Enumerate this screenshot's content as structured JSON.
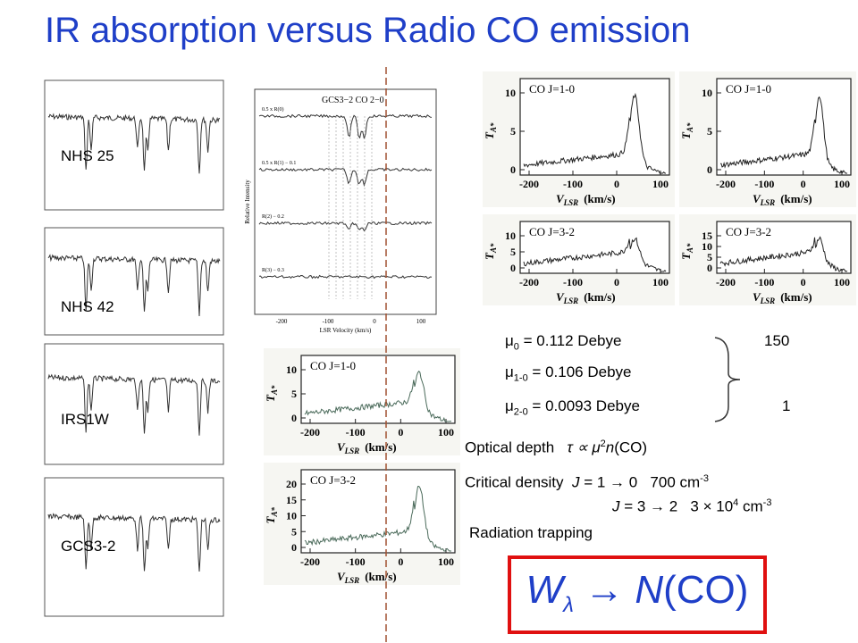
{
  "title": "IR absorption versus Radio CO emission",
  "ir_spectra": {
    "labels": [
      "NHS 25",
      "NHS 42",
      "IRS1W",
      "GCS3-2"
    ]
  },
  "gcs_panel": {
    "title": "GCS3−2   CO 2−0",
    "xticks": [
      "-200",
      "-100",
      "0",
      "100"
    ],
    "xlabel": "LSR Velocity (km/s)",
    "ylabel": "Relative Intensity",
    "rows": [
      "0.5 x R(0)",
      "0.5 x R(1) − 0.1",
      "R(2) − 0.2",
      "R(3) − 0.3"
    ]
  },
  "radio_panels": [
    {
      "title": "CO J=1-0",
      "yticks": [
        "0",
        "5",
        "10"
      ],
      "xticks": [
        "-200",
        "-100",
        "0",
        "100"
      ],
      "xlabel": "V",
      "xlabel_sub": "LSR",
      "xlabel_unit": "(km/s)",
      "ylabel": "T",
      "ylabel_sub": "A*"
    },
    {
      "title": "CO J=1-0",
      "yticks": [
        "0",
        "5",
        "10"
      ],
      "xticks": [
        "-200",
        "-100",
        "0",
        "100"
      ],
      "xlabel": "V",
      "xlabel_sub": "LSR",
      "xlabel_unit": "(km/s)",
      "ylabel": "T",
      "ylabel_sub": "A*"
    },
    {
      "title": "CO J=3-2",
      "yticks": [
        "0",
        "5",
        "10"
      ],
      "xticks": [
        "-200",
        "-100",
        "0",
        "100"
      ],
      "xlabel": "V",
      "xlabel_sub": "LSR",
      "xlabel_unit": "(km/s)",
      "ylabel": "T",
      "ylabel_sub": "A*"
    },
    {
      "title": "CO J=3-2",
      "yticks": [
        "0",
        "5",
        "10",
        "15"
      ],
      "xticks": [
        "-200",
        "-100",
        "0",
        "100"
      ],
      "xlabel": "V",
      "xlabel_sub": "LSR",
      "xlabel_unit": "(km/s)",
      "ylabel": "T",
      "ylabel_sub": "A*"
    },
    {
      "title": "CO J=1-0",
      "yticks": [
        "0",
        "5",
        "10"
      ],
      "xticks": [
        "-200",
        "-100",
        "0",
        "100"
      ],
      "xlabel": "V",
      "xlabel_sub": "LSR",
      "xlabel_unit": "(km/s)",
      "ylabel": "T",
      "ylabel_sub": "A*"
    },
    {
      "title": "CO J=3-2",
      "yticks": [
        "0",
        "5",
        "10",
        "15",
        "20"
      ],
      "xticks": [
        "-200",
        "-100",
        "0",
        "100"
      ],
      "xlabel": "V",
      "xlabel_sub": "LSR",
      "xlabel_unit": "(km/s)",
      "ylabel": "T",
      "ylabel_sub": "A*"
    }
  ],
  "dipoles": [
    {
      "symbol": "μ",
      "sub": "0",
      "rest": " = 0.112 Debye"
    },
    {
      "symbol": "μ",
      "sub": "1-0",
      "rest": " = 0.106 Debye"
    },
    {
      "symbol": "μ",
      "sub": "2-0",
      "rest": " = 0.0093 Debye"
    }
  ],
  "ratio": {
    "top": "150",
    "bottom": "1"
  },
  "optical_depth": {
    "label": "Optical depth",
    "tau": "τ ∝ ",
    "mu": "μ",
    "sup": "2",
    "n": "n",
    "co": "(CO)"
  },
  "critical_density": {
    "label": "Critical density",
    "row1": {
      "j": "J",
      "trans": " = 1 → 0",
      "value": "700 cm",
      "sup": "-3"
    },
    "row2": {
      "j": "J",
      "trans": " = 3 → 2",
      "value": "3 × 10",
      "sup": "4",
      "unit": " cm",
      "sup2": "-3"
    }
  },
  "radiation": "Radiation trapping",
  "result": {
    "w": "W",
    "sub": "λ",
    "arrow": " → ",
    "n": "N",
    "co": "(CO)"
  }
}
